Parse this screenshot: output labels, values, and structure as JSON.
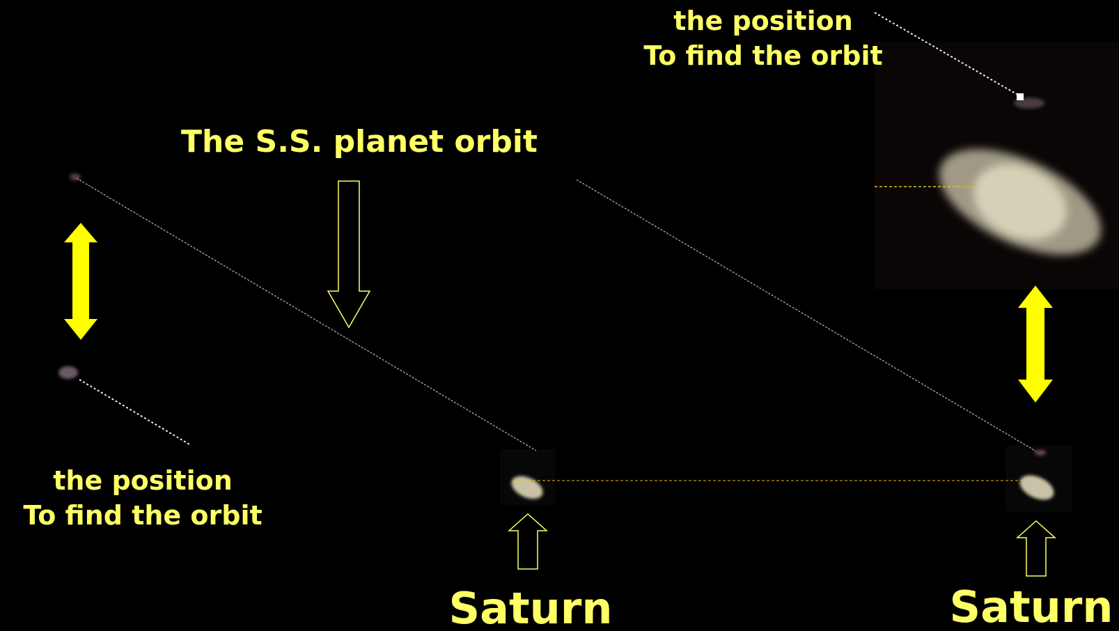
{
  "annotations": {
    "top_right": {
      "line1": "the position",
      "line2": "To find the orbit"
    },
    "title": "The S.S. planet orbit",
    "bottom_left": {
      "line1": "the position",
      "line2": "To find the orbit"
    },
    "saturn_left": "Saturn",
    "saturn_right": "Saturn"
  }
}
